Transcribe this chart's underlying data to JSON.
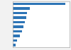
{
  "values": [
    5800,
    1900,
    1600,
    1450,
    1300,
    1150,
    1000,
    750,
    500,
    280
  ],
  "bar_color": "#2e75b6",
  "background_color": "#f2f2f2",
  "plot_bg_color": "#ffffff",
  "grid_color": "#aaaaaa",
  "figsize": [
    1.0,
    0.71
  ],
  "dpi": 100,
  "bar_height": 0.55
}
